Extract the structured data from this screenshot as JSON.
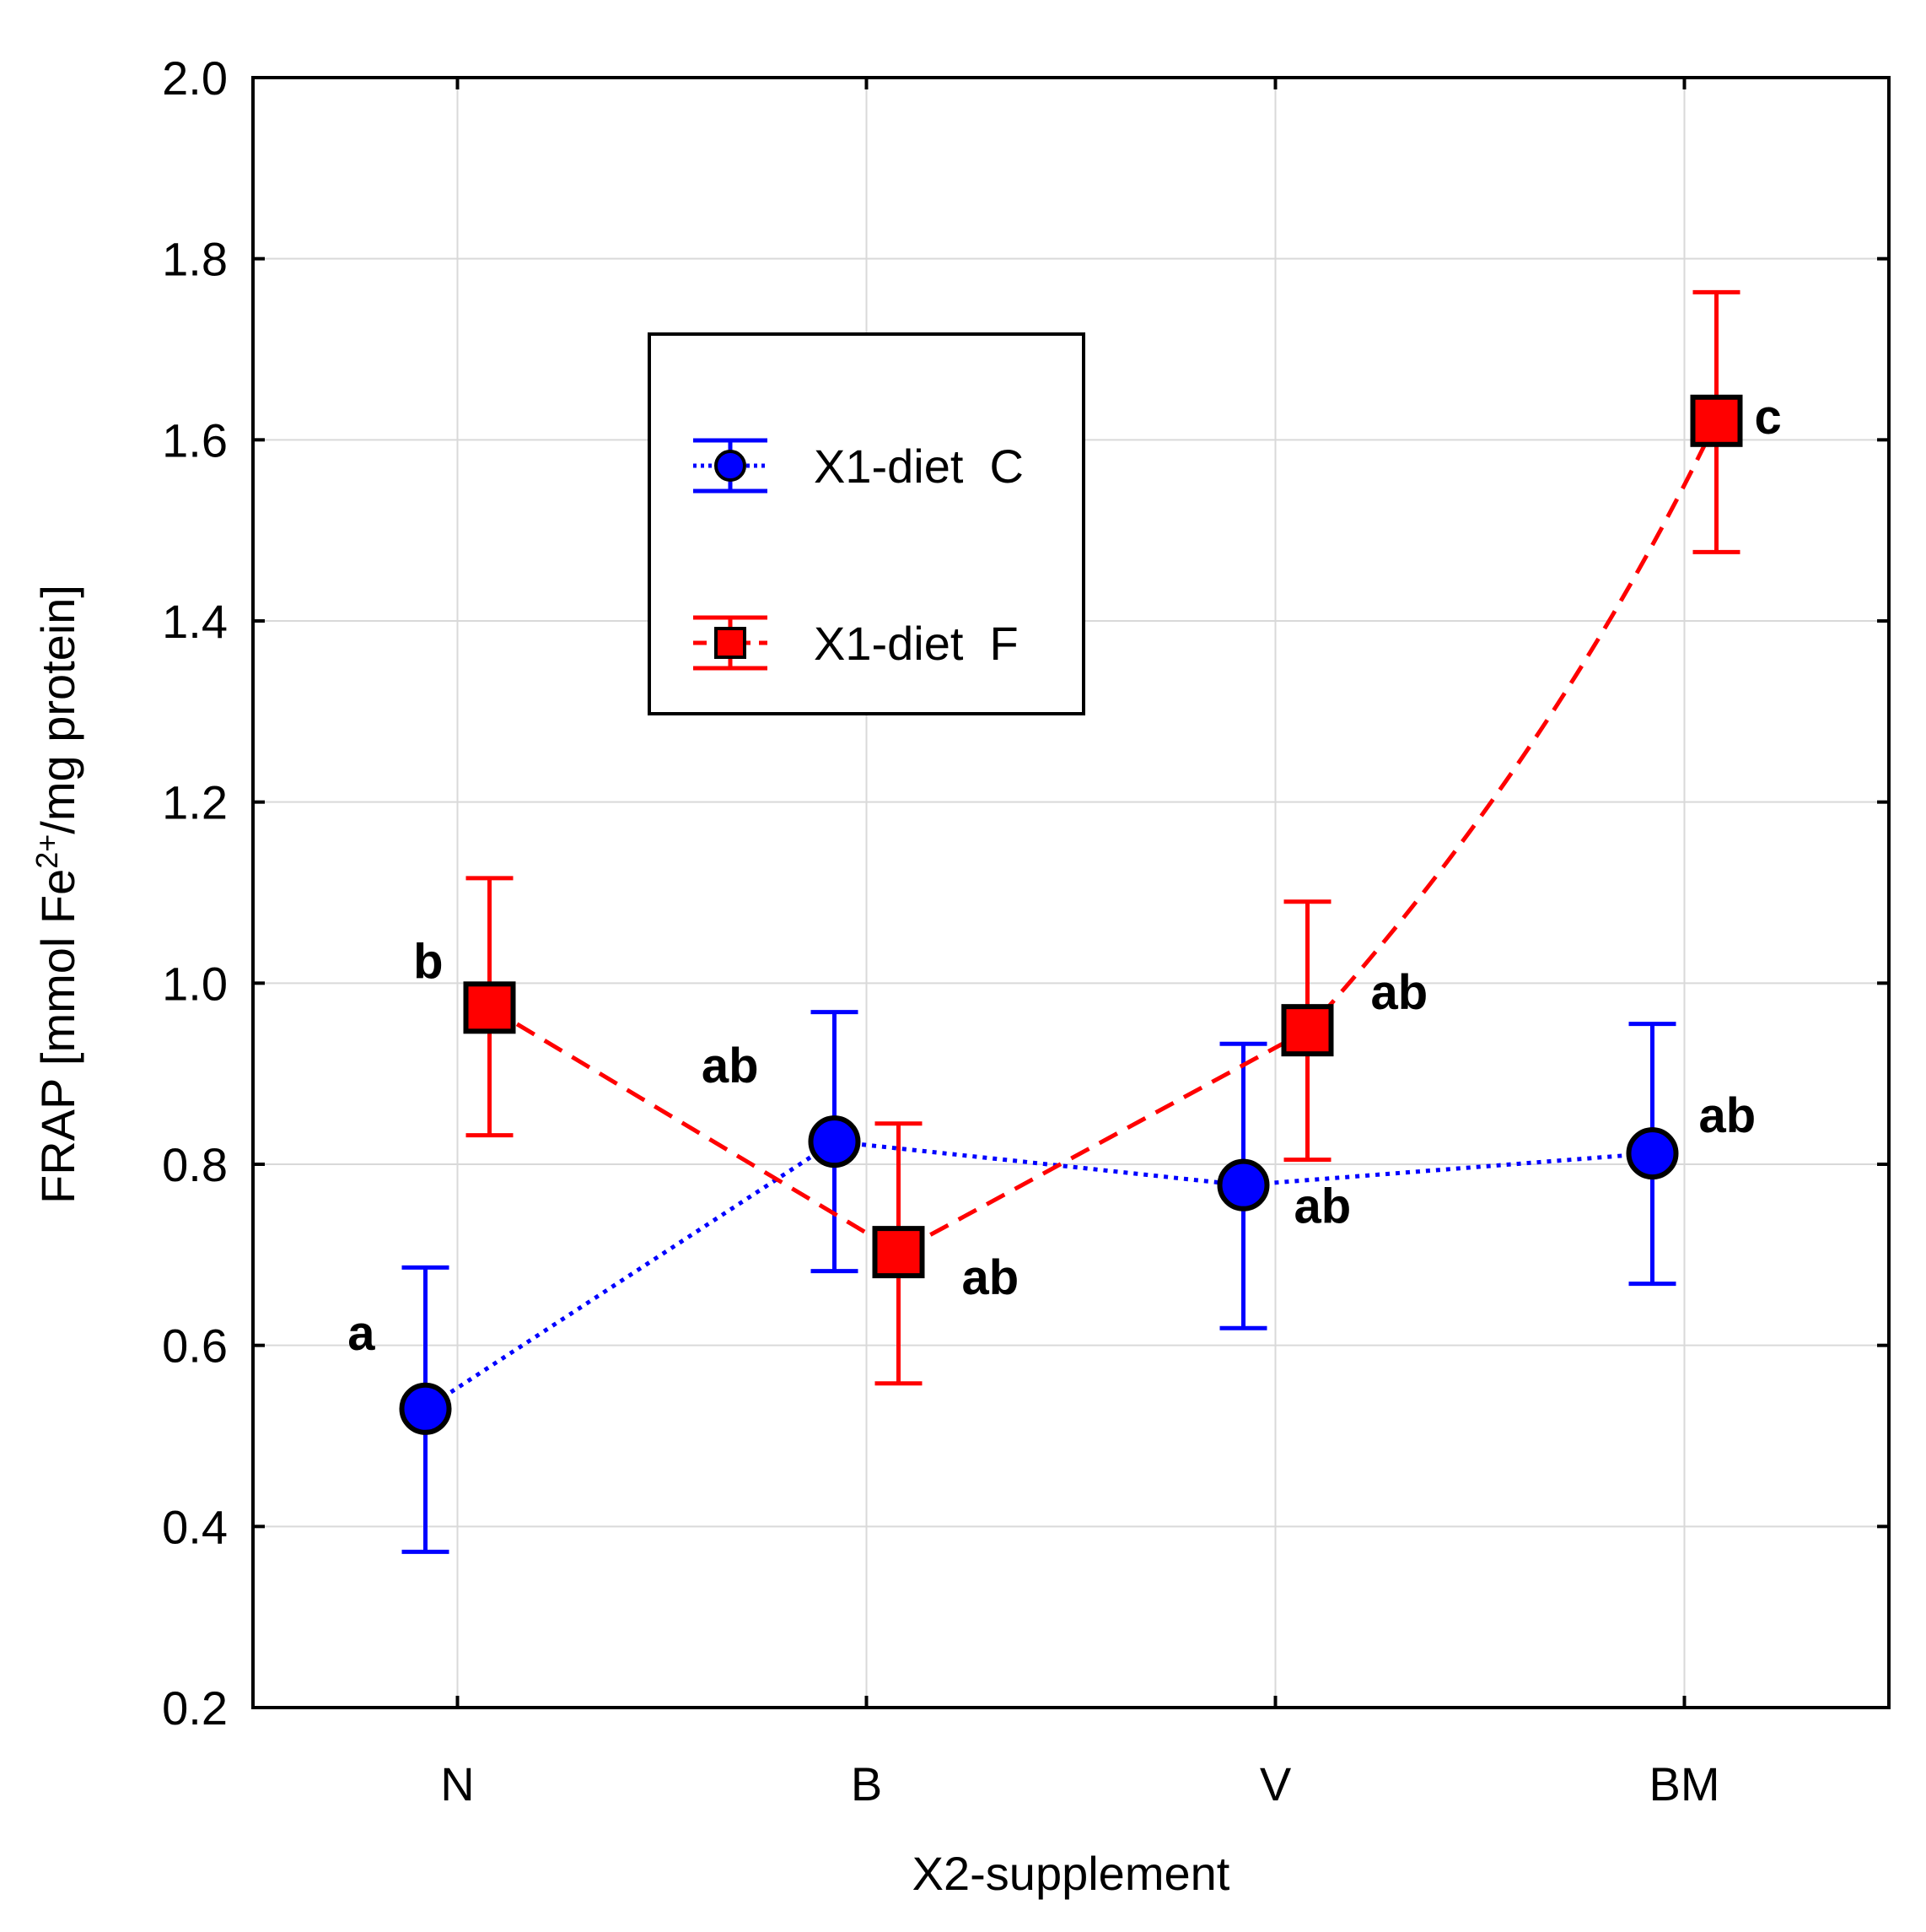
{
  "chart_data": {
    "type": "line",
    "title": "",
    "xlabel": "X2-supplement",
    "ylabel": {
      "prefix": "FRAP [mmol Fe",
      "superscript": "2+",
      "suffix": "/mg protein]"
    },
    "categories": [
      "N",
      "B",
      "V",
      "BM"
    ],
    "ylim": [
      0.2,
      2.0
    ],
    "yticks": [
      "0.2",
      "0.4",
      "0.6",
      "0.8",
      "1.0",
      "1.2",
      "1.4",
      "1.6",
      "1.8",
      "2.0"
    ],
    "grid": true,
    "legend_position": "upper-left-center",
    "series": [
      {
        "name": "X1-diet  C",
        "color": "#0000ff",
        "marker": "circle",
        "line_style": "dotted",
        "values": [
          0.53,
          0.825,
          0.777,
          0.812
        ],
        "err_low": [
          0.372,
          0.682,
          0.619,
          0.668
        ],
        "err_high": [
          0.686,
          0.968,
          0.933,
          0.955
        ],
        "labels": [
          "a",
          "ab",
          "ab",
          "ab"
        ]
      },
      {
        "name": "X1-diet  F",
        "color": "#ff0000",
        "marker": "square",
        "line_style": "dashed",
        "values": [
          0.973,
          0.703,
          0.948,
          1.621
        ],
        "err_low": [
          0.832,
          0.558,
          0.805,
          1.476
        ],
        "err_high": [
          1.116,
          0.845,
          1.09,
          1.763
        ],
        "labels": [
          "b",
          "ab",
          "ab",
          "c"
        ]
      }
    ]
  }
}
